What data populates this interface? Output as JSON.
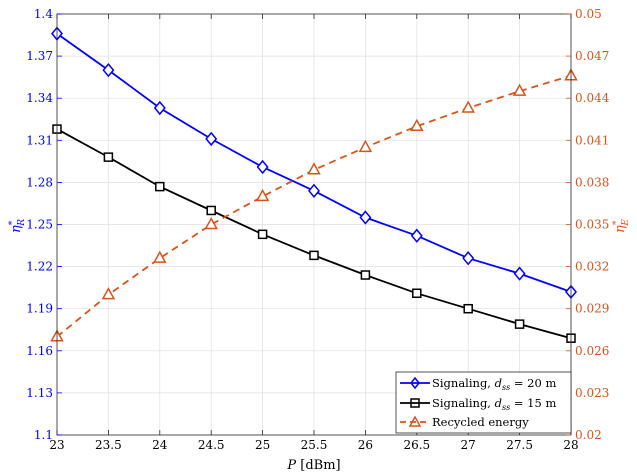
{
  "chart_data": {
    "type": "line",
    "xlabel": "P [dBm]",
    "ylabel_left": "η*_R",
    "ylabel_right": "η*_E",
    "x": [
      23,
      23.5,
      24,
      24.5,
      25,
      25.5,
      26,
      26.5,
      27,
      27.5,
      28
    ],
    "xlim": [
      23,
      28
    ],
    "ylim_left": [
      1.1,
      1.4
    ],
    "ylim_right": [
      0.02,
      0.05
    ],
    "xticks": [
      "23",
      "23.5",
      "24",
      "24.5",
      "25",
      "25.5",
      "26",
      "26.5",
      "27",
      "27.5",
      "28"
    ],
    "yticks_left": [
      "1.1",
      "1.13",
      "1.16",
      "1.19",
      "1.22",
      "1.25",
      "1.28",
      "1.31",
      "1.34",
      "1.37",
      "1.4"
    ],
    "yticks_right": [
      "0.02",
      "0.023",
      "0.026",
      "0.029",
      "0.032",
      "0.035",
      "0.038",
      "0.041",
      "0.044",
      "0.047",
      "0.05"
    ],
    "grid": true,
    "legend_position": "bottom-right",
    "series": [
      {
        "name": "Signaling, d_ss = 20 m",
        "axis": "left",
        "color": "#0000ff",
        "marker": "diamond",
        "linestyle": "solid",
        "values": [
          1.386,
          1.36,
          1.333,
          1.311,
          1.291,
          1.274,
          1.255,
          1.242,
          1.226,
          1.215,
          1.202
        ]
      },
      {
        "name": "Signaling, d_ss = 15 m",
        "axis": "left",
        "color": "#000000",
        "marker": "square",
        "linestyle": "solid",
        "values": [
          1.318,
          1.298,
          1.277,
          1.26,
          1.243,
          1.228,
          1.214,
          1.201,
          1.19,
          1.179,
          1.169
        ]
      },
      {
        "name": "Recycled energy",
        "axis": "right",
        "color": "#d95319",
        "marker": "triangle",
        "linestyle": "dashed",
        "values": [
          0.027,
          0.03,
          0.0326,
          0.035,
          0.037,
          0.0389,
          0.0405,
          0.042,
          0.0433,
          0.0445,
          0.0456
        ]
      }
    ]
  },
  "legend": {
    "entry1_prefix": "Signaling, ",
    "entry1_var": "d",
    "entry1_sub": "ss",
    "entry1_suffix": " = 20 m",
    "entry2_prefix": "Signaling, ",
    "entry2_var": "d",
    "entry2_sub": "ss",
    "entry2_suffix": " = 15 m",
    "entry3": "Recycled energy"
  },
  "axis_labels": {
    "x_var": "P",
    "x_unit": " [dBm]",
    "left_var": "η",
    "left_sup": "*",
    "left_sub": "R",
    "right_var": "η",
    "right_sup": "*",
    "right_sub": "E"
  }
}
